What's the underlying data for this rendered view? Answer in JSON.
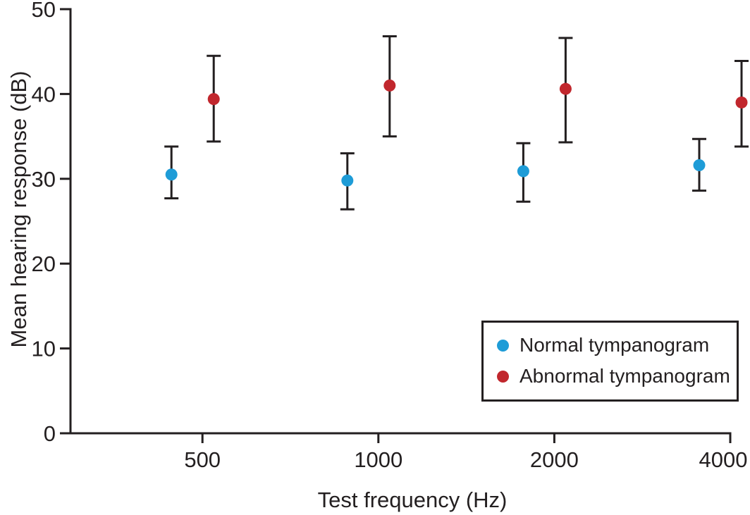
{
  "figure": {
    "background": "#ffffff",
    "axis_color": "#231f20",
    "text_color": "#231f20"
  },
  "chart_data": {
    "type": "scatter",
    "title": "",
    "xlabel": "Test frequency (Hz)",
    "ylabel": "Mean hearing response (dB)",
    "x_tick_labels": [
      "500",
      "1000",
      "2000",
      "4000"
    ],
    "y_ticks": [
      0,
      10,
      20,
      30,
      40,
      50
    ],
    "ylim": [
      0,
      50
    ],
    "grid": false,
    "legend_position": "lower right",
    "error_bars": true,
    "series": [
      {
        "name": "Normal tympanogram",
        "color": "#1e9cd7",
        "dx": -44,
        "points": [
          {
            "x": "500",
            "mean": 30.5,
            "lo": 27.7,
            "hi": 33.8
          },
          {
            "x": "1000",
            "mean": 29.8,
            "lo": 26.4,
            "hi": 33.0
          },
          {
            "x": "2000",
            "mean": 30.9,
            "lo": 27.3,
            "hi": 34.2
          },
          {
            "x": "4000",
            "mean": 31.6,
            "lo": 28.6,
            "hi": 34.7
          }
        ]
      },
      {
        "name": "Abnormal tympanogram",
        "color": "#c1272d",
        "dx": 16,
        "points": [
          {
            "x": "500",
            "mean": 39.4,
            "lo": 34.4,
            "hi": 44.5
          },
          {
            "x": "1000",
            "mean": 41.0,
            "lo": 35.0,
            "hi": 46.8
          },
          {
            "x": "2000",
            "mean": 40.6,
            "lo": 34.3,
            "hi": 46.6
          },
          {
            "x": "4000",
            "mean": 39.0,
            "lo": 33.8,
            "hi": 43.9
          }
        ]
      }
    ]
  }
}
